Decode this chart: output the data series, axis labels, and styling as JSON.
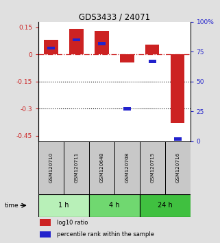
{
  "title": "GDS3433 / 24071",
  "samples": [
    "GSM120710",
    "GSM120711",
    "GSM120648",
    "GSM120708",
    "GSM120715",
    "GSM120716"
  ],
  "log10_ratio": [
    0.08,
    0.14,
    0.13,
    -0.045,
    0.055,
    -0.38
  ],
  "percentile_rank": [
    78,
    85,
    82,
    27,
    67,
    2
  ],
  "time_groups": [
    {
      "label": "1 h",
      "samples": [
        0,
        1
      ],
      "color": "#b8f0b8"
    },
    {
      "label": "4 h",
      "samples": [
        2,
        3
      ],
      "color": "#70d870"
    },
    {
      "label": "24 h",
      "samples": [
        4,
        5
      ],
      "color": "#40c040"
    }
  ],
  "ylim_left": [
    -0.48,
    0.18
  ],
  "ylim_right": [
    0,
    100
  ],
  "yticks_left": [
    0.15,
    0.0,
    -0.15,
    -0.3,
    -0.45
  ],
  "yticks_right": [
    100,
    75,
    50,
    25,
    0
  ],
  "red_color": "#cc2222",
  "blue_color": "#2222cc",
  "bg_plot": "#ffffff",
  "bg_sample": "#c8c8c8",
  "bg_fig": "#e0e0e0"
}
